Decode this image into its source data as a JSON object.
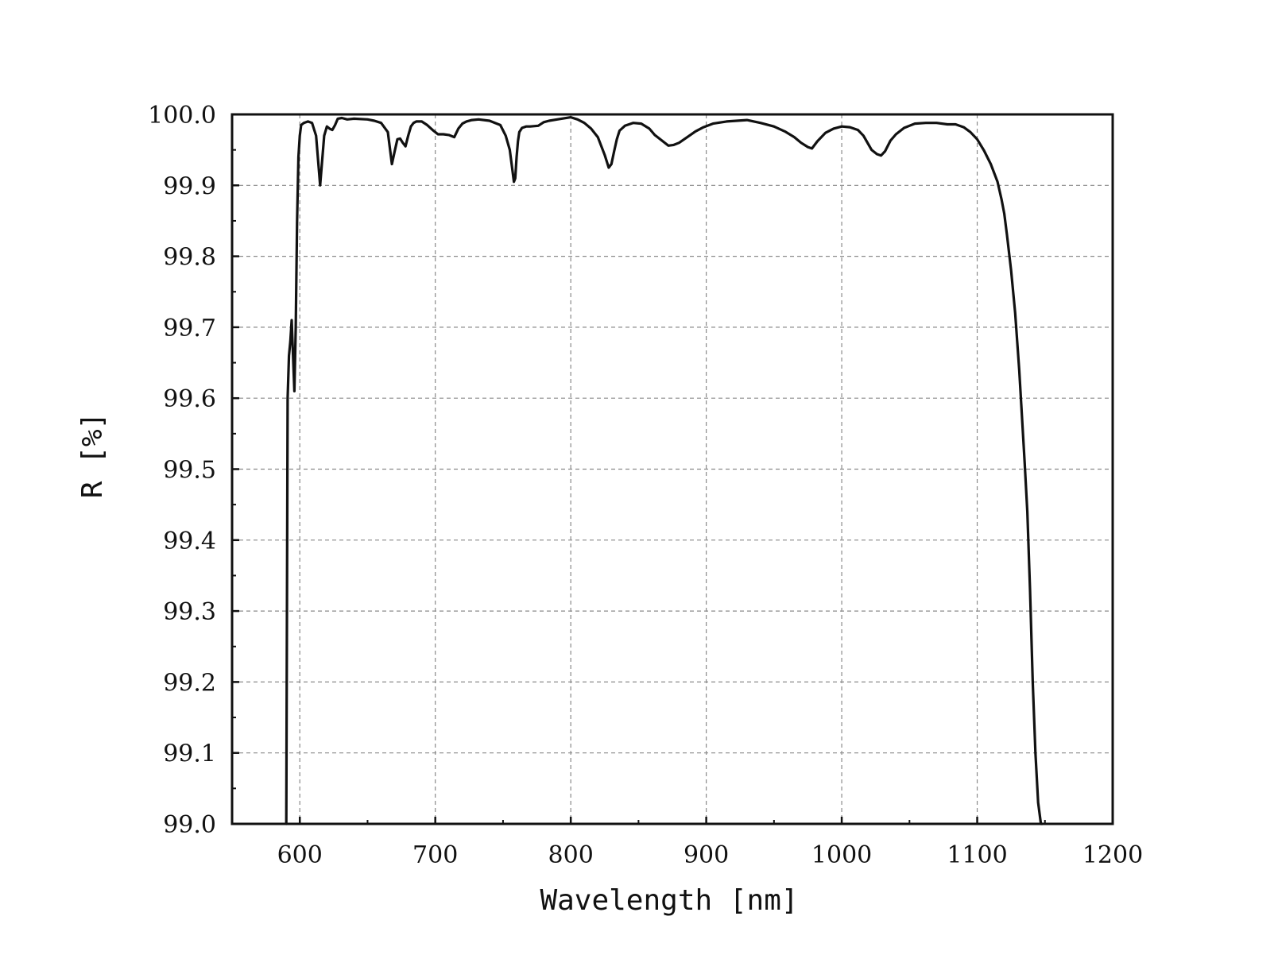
{
  "chart_data": {
    "type": "line",
    "title": "",
    "xlabel": "Wavelength [nm]",
    "ylabel": "R [%]",
    "xlim": [
      550,
      1200
    ],
    "ylim": [
      99.0,
      100.0
    ],
    "x_ticks": [
      600,
      700,
      800,
      900,
      1000,
      1100,
      1200
    ],
    "x_tick_labels": [
      "600",
      "700",
      "800",
      "900",
      "1000",
      "1100",
      "1200"
    ],
    "y_ticks": [
      99.0,
      99.1,
      99.2,
      99.3,
      99.4,
      99.5,
      99.6,
      99.7,
      99.8,
      99.9,
      100.0
    ],
    "y_tick_labels": [
      "99.0",
      "99.1",
      "99.2",
      "99.3",
      "99.4",
      "99.5",
      "99.6",
      "99.7",
      "99.8",
      "99.9",
      "100.0"
    ],
    "grid": true,
    "legend": "none",
    "colors": {
      "line": "#111111",
      "grid": "#8a8a8a",
      "axes": "#111111"
    },
    "series": [
      {
        "x": [
          590,
          591,
          592,
          593,
          594,
          595,
          596,
          597,
          598,
          599,
          600,
          601,
          603,
          606,
          609,
          612,
          615,
          618,
          620,
          622,
          624,
          626,
          628,
          631,
          635,
          640,
          650,
          655,
          660,
          665,
          668,
          670,
          672,
          674,
          676,
          678,
          680,
          682,
          684,
          686,
          690,
          694,
          698,
          702,
          706,
          710,
          714,
          717,
          720,
          723,
          727,
          732,
          740,
          748,
          752,
          755,
          757,
          758,
          759,
          760,
          761,
          762,
          764,
          767,
          770,
          776,
          780,
          784,
          790,
          800,
          805,
          810,
          815,
          820,
          825,
          828,
          830,
          832,
          834,
          836,
          840,
          846,
          852,
          858,
          862,
          866,
          872,
          876,
          880,
          886,
          892,
          898,
          905,
          915,
          930,
          940,
          950,
          958,
          965,
          970,
          975,
          978,
          982,
          988,
          994,
          1000,
          1006,
          1012,
          1016,
          1019,
          1022,
          1026,
          1029,
          1032,
          1036,
          1040,
          1046,
          1054,
          1062,
          1070,
          1078,
          1084,
          1090,
          1095,
          1100,
          1105,
          1110,
          1115,
          1118,
          1120,
          1122,
          1125,
          1128,
          1131,
          1133,
          1135,
          1137,
          1139,
          1141,
          1143,
          1145,
          1147,
          1148
        ],
        "y": [
          99.0,
          99.6,
          99.66,
          99.68,
          99.71,
          99.66,
          99.61,
          99.7,
          99.85,
          99.94,
          99.97,
          99.985,
          99.988,
          99.99,
          99.988,
          99.97,
          99.9,
          99.97,
          99.983,
          99.98,
          99.978,
          99.985,
          99.994,
          99.995,
          99.993,
          99.994,
          99.993,
          99.991,
          99.988,
          99.975,
          99.93,
          99.948,
          99.965,
          99.966,
          99.96,
          99.955,
          99.97,
          99.983,
          99.988,
          99.99,
          99.99,
          99.985,
          99.978,
          99.972,
          99.972,
          99.971,
          99.968,
          99.98,
          99.987,
          99.99,
          99.992,
          99.993,
          99.991,
          99.985,
          99.97,
          99.95,
          99.92,
          99.905,
          99.91,
          99.94,
          99.962,
          99.975,
          99.981,
          99.983,
          99.983,
          99.984,
          99.989,
          99.991,
          99.993,
          99.996,
          99.993,
          99.988,
          99.98,
          99.968,
          99.943,
          99.925,
          99.93,
          99.948,
          99.965,
          99.977,
          99.984,
          99.988,
          99.987,
          99.98,
          99.971,
          99.965,
          99.956,
          99.957,
          99.96,
          99.968,
          99.976,
          99.982,
          99.987,
          99.99,
          99.992,
          99.988,
          99.983,
          99.976,
          99.968,
          99.96,
          99.954,
          99.952,
          99.962,
          99.974,
          99.98,
          99.983,
          99.982,
          99.978,
          99.97,
          99.96,
          99.95,
          99.944,
          99.942,
          99.948,
          99.963,
          99.972,
          99.981,
          99.987,
          99.988,
          99.988,
          99.986,
          99.986,
          99.982,
          99.975,
          99.965,
          99.949,
          99.93,
          99.905,
          99.88,
          99.86,
          99.83,
          99.78,
          99.72,
          99.64,
          99.575,
          99.51,
          99.44,
          99.33,
          99.2,
          99.1,
          99.03,
          99.0,
          99.0
        ]
      }
    ]
  }
}
